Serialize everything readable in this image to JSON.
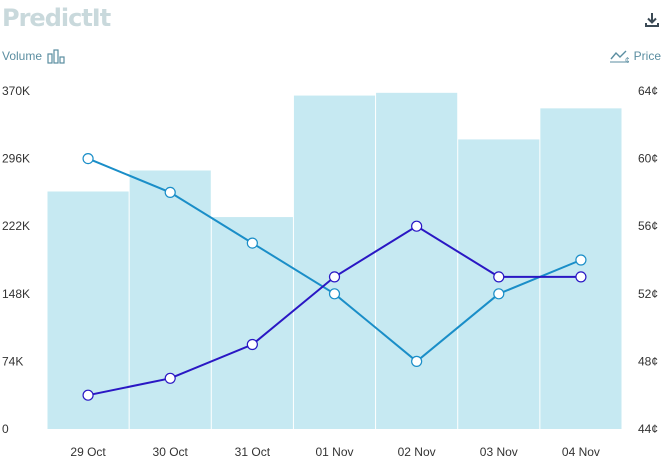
{
  "brand": {
    "logo_text": "PredictIt"
  },
  "toolbar": {
    "download_icon": "download-icon"
  },
  "legend": {
    "volume_label": "Volume",
    "volume_icon": "bar-chart-icon",
    "price_label": "Price",
    "price_icon": "line-chart-icon"
  },
  "colors": {
    "bars": "#c6e9f2",
    "series_cyan": "#1a8ec8",
    "series_indigo": "#2a17c4",
    "axis_text": "#333333",
    "legend_text": "#5b8ea1"
  },
  "chart_data": {
    "type": "bar",
    "categories": [
      "29 Oct",
      "30 Oct",
      "31 Oct",
      "01 Nov",
      "02 Nov",
      "03 Nov",
      "04 Nov"
    ],
    "y_left_ticks": [
      "0",
      "74K",
      "148K",
      "222K",
      "296K",
      "370K"
    ],
    "y_left_range": [
      0,
      370000
    ],
    "y_right_ticks": [
      "44¢",
      "48¢",
      "52¢",
      "56¢",
      "60¢",
      "64¢"
    ],
    "y_right_range": [
      44,
      64
    ],
    "volume": [
      260000,
      283000,
      232000,
      365000,
      368000,
      317000,
      351000
    ],
    "series": [
      {
        "values": [
          60,
          58,
          55,
          52,
          48,
          52,
          54
        ],
        "color": "#1a8ec8"
      },
      {
        "values": [
          46,
          47,
          49,
          53,
          56,
          53,
          53
        ],
        "color": "#2a17c4"
      }
    ],
    "grid": false,
    "legend": "top"
  }
}
